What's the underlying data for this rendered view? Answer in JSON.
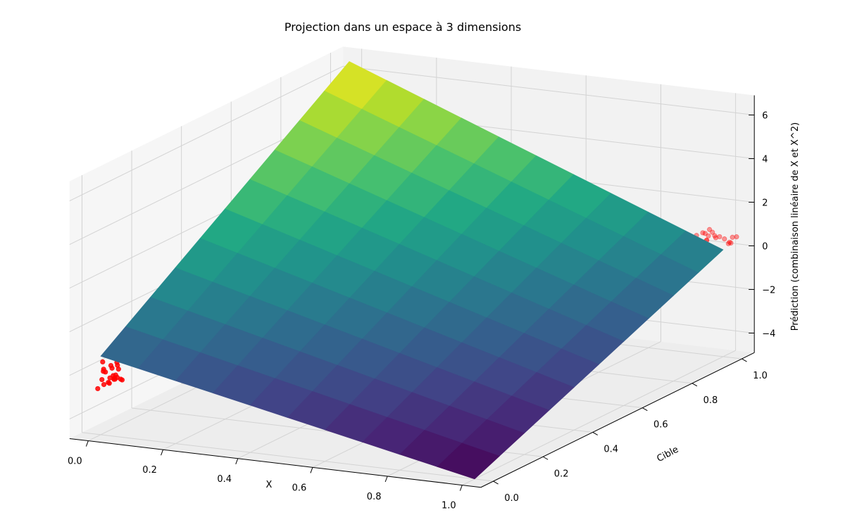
{
  "chart_data": {
    "type": "surface3d",
    "title": "Projection dans un espace à 3 dimensions",
    "xlabel": "X",
    "ylabel": "Cible",
    "zlabel": "Prédiction (combinaison linéaire de X et X^2)",
    "xlim": [
      0,
      1
    ],
    "ylim": [
      0,
      1
    ],
    "zlim": [
      -5,
      7
    ],
    "xticks": [
      "0.0",
      "0.2",
      "0.4",
      "0.6",
      "0.8",
      "1.0"
    ],
    "yticks": [
      "0.0",
      "0.2",
      "0.4",
      "0.6",
      "0.8",
      "1.0"
    ],
    "zticks": [
      "−4",
      "−2",
      "0",
      "2",
      "4",
      "6"
    ],
    "grid": true,
    "colormap": "viridis",
    "surface": {
      "x_range": [
        0,
        1
      ],
      "y_range": [
        0,
        1
      ],
      "grid_size": 10,
      "z_at_corners": {
        "x0_y0": -1.3,
        "x1_y0": -4.9,
        "x0_y1": 6.6,
        "x1_y1": 0.0
      }
    },
    "scatter": {
      "color": "#ff0000",
      "clusters": [
        {
          "x_center": 0.0,
          "y_center": 0.05,
          "z_center": -2.3
        },
        {
          "x_center": 1.0,
          "y_center": 0.95,
          "z_center": 0.6
        }
      ]
    }
  }
}
